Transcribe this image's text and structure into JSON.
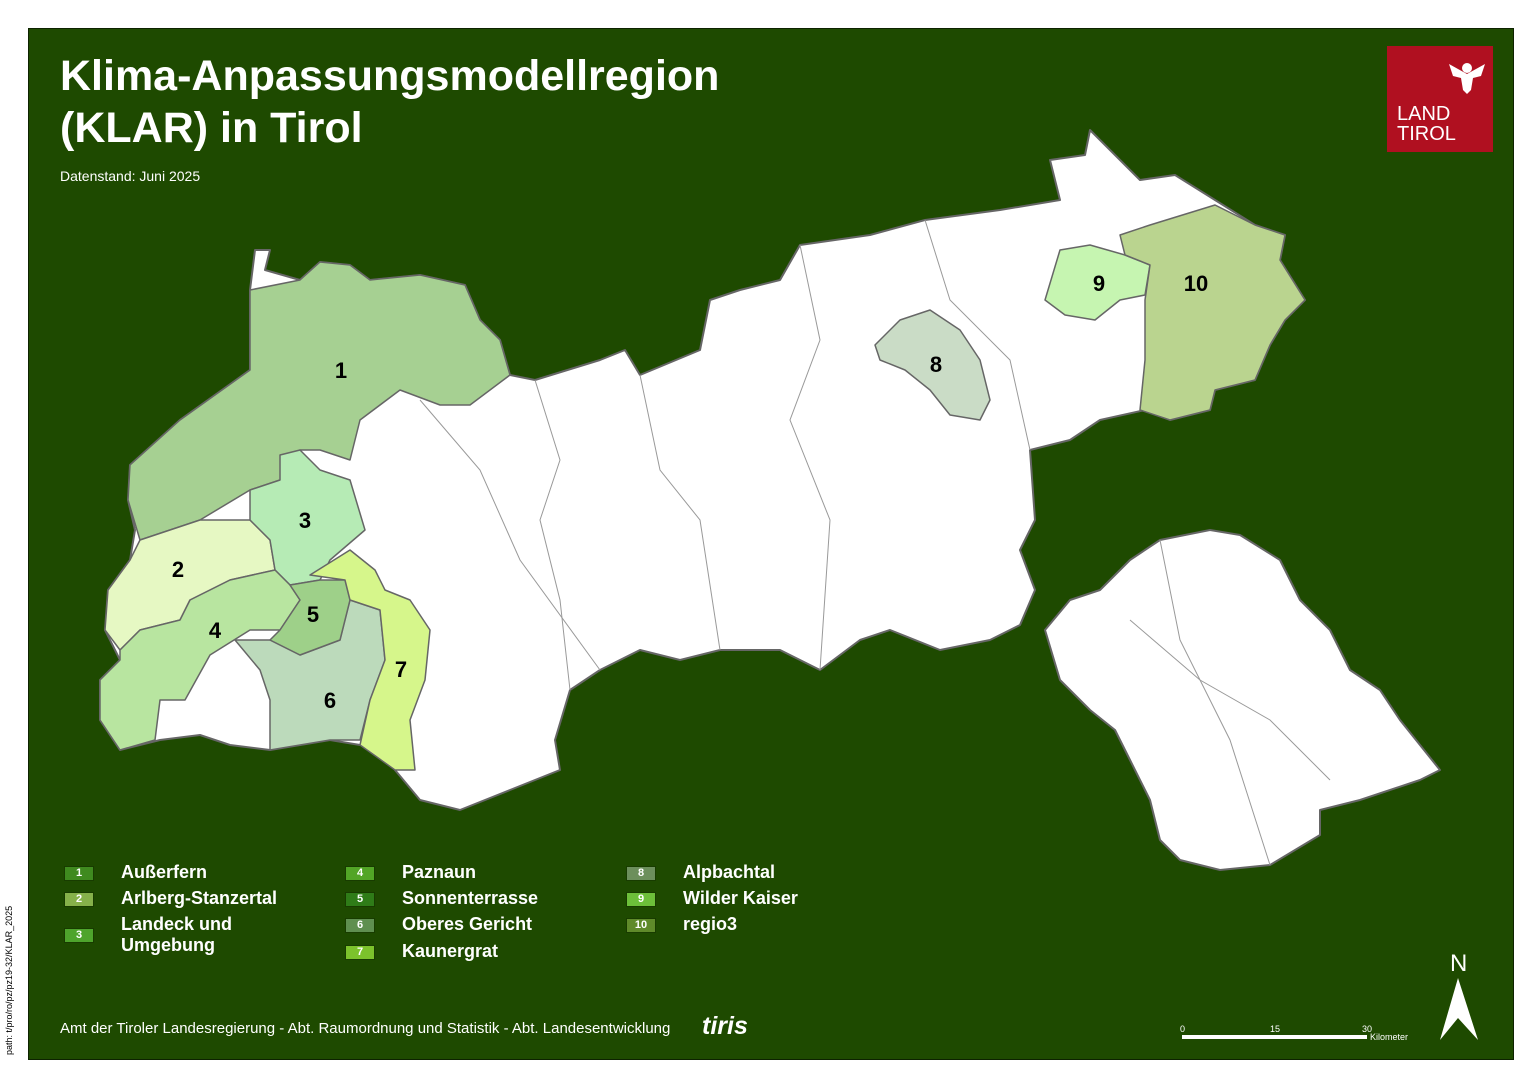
{
  "title_line1": "Klima-Anpassungsmodellregion",
  "title_line2": "(KLAR) in Tirol",
  "datenstand": "Datenstand: Juni 2025",
  "logo": {
    "line1": "LAND",
    "line2": "TIROL",
    "color": "#b01020",
    "icon": "tyrolean-eagle-icon"
  },
  "map": {
    "background": "#1e4a00",
    "regions": [
      {
        "id": "1",
        "color": "#a6d092"
      },
      {
        "id": "2",
        "color": "#e6f8c3"
      },
      {
        "id": "3",
        "color": "#b6ebb5"
      },
      {
        "id": "4",
        "color": "#b8e5a0"
      },
      {
        "id": "5",
        "color": "#9ed089"
      },
      {
        "id": "6",
        "color": "#bcdabb"
      },
      {
        "id": "7",
        "color": "#d6f68b"
      },
      {
        "id": "8",
        "color": "#cadcc6"
      },
      {
        "id": "9",
        "color": "#c6f5b1"
      },
      {
        "id": "10",
        "color": "#bad48f"
      }
    ]
  },
  "legend": [
    {
      "num": "1",
      "label": "Außerfern",
      "swatch": "#3f8a1f"
    },
    {
      "num": "2",
      "label": "Arlberg-Stanzertal",
      "swatch": "#86b14a"
    },
    {
      "num": "3",
      "label": "Landeck und Umgebung",
      "swatch": "#4ea42c"
    },
    {
      "num": "4",
      "label": "Paznaun",
      "swatch": "#52a526"
    },
    {
      "num": "5",
      "label": "Sonnenterrasse",
      "swatch": "#2f7c18"
    },
    {
      "num": "6",
      "label": "Oberes Gericht",
      "swatch": "#5f8f50"
    },
    {
      "num": "7",
      "label": "Kaunergrat",
      "swatch": "#7cc22c"
    },
    {
      "num": "8",
      "label": "Alpbachtal",
      "swatch": "#6c8f5c"
    },
    {
      "num": "9",
      "label": "Wilder Kaiser",
      "swatch": "#6dbf3a"
    },
    {
      "num": "10",
      "label": "regio3",
      "swatch": "#5f8a2a"
    }
  ],
  "footer": "Amt der Tiroler Landesregierung - Abt. Raumordnung und Statistik - Abt. Landesentwicklung",
  "tiris": "tiris",
  "scale": {
    "t0": "0",
    "t1": "15",
    "t2": "30",
    "unit": "Kilometer"
  },
  "north": "N",
  "path": "path: t/pro/ro/pz/pz19-32/KLAR_2025"
}
